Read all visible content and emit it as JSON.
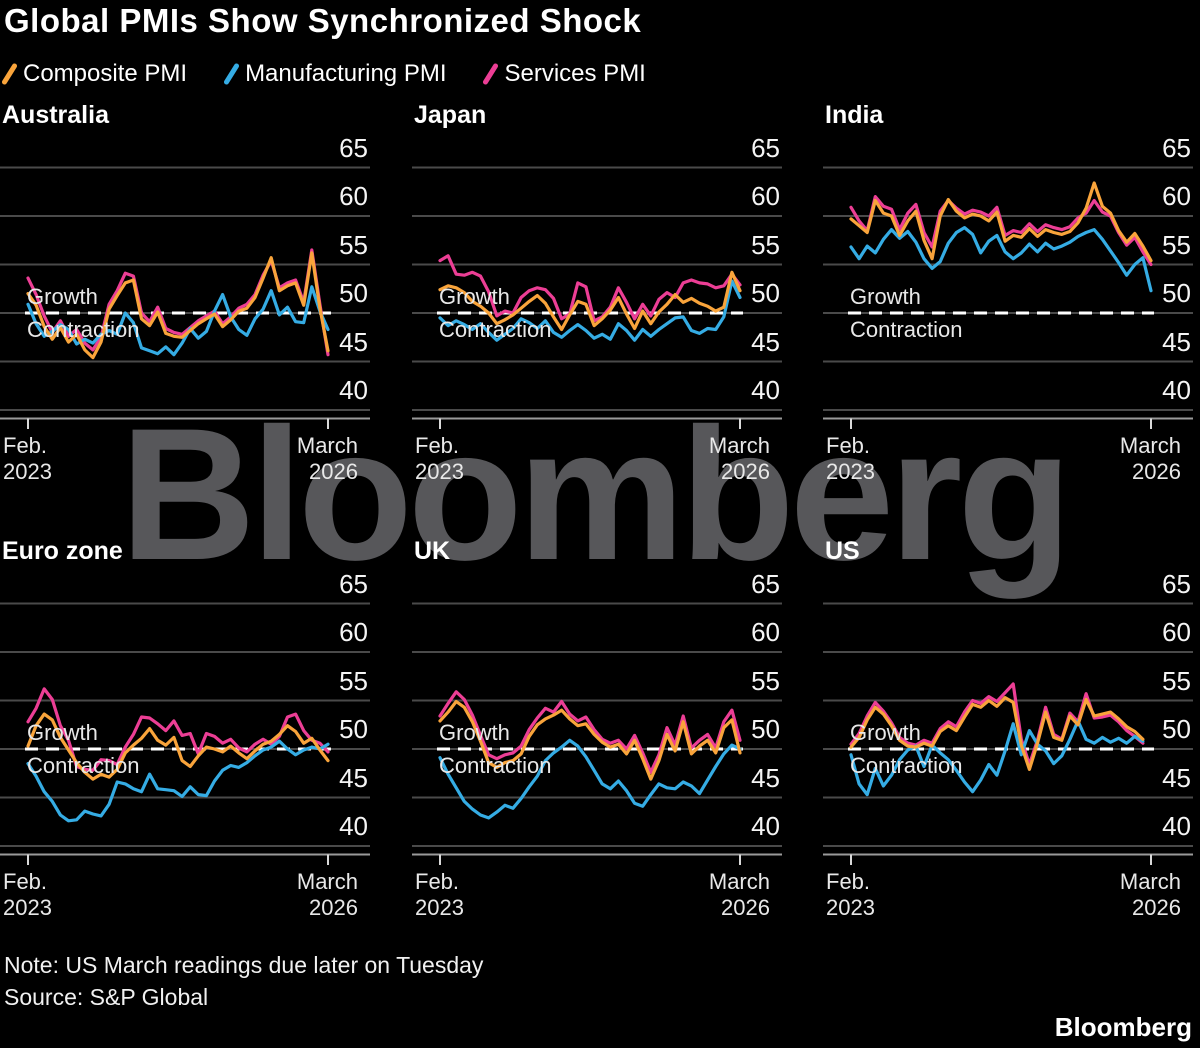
{
  "title": "Global PMIs Show Synchronized Shock",
  "legend": [
    {
      "label": "Composite PMI",
      "color": "#F9A43B"
    },
    {
      "label": "Manufacturing PMI",
      "color": "#35ACE4"
    },
    {
      "label": "Services PMI",
      "color": "#EC3E95"
    }
  ],
  "threshold_labels": {
    "growth": "Growth",
    "contraction": "Contraction"
  },
  "x_axis": {
    "start": [
      "Feb.",
      "2023"
    ],
    "end": [
      "March",
      "2026"
    ]
  },
  "axis": {
    "y_ticks": [
      65,
      60,
      55,
      50,
      45,
      40
    ]
  },
  "watermark": "Bloomberg",
  "note": "Note: US March readings due later on Tuesday",
  "source": "Source: S&P Global",
  "brand": "Bloomberg",
  "colors": {
    "background": "#000000",
    "gridline": "#4a4a4a",
    "axis_line": "#9a9a9a",
    "tick_mark": "#d9d9d9",
    "threshold_line": "#ffffff",
    "watermark": "#57575a",
    "composite": "#F9A43B",
    "manufacturing": "#35ACE4",
    "services": "#EC3E95"
  },
  "chart_data": [
    {
      "type": "line",
      "title": "Australia",
      "x_range": [
        "Feb. 2023",
        "March 2026"
      ],
      "ylim": [
        38,
        67
      ],
      "y_ticks": [
        65,
        60,
        55,
        50,
        45,
        40
      ],
      "threshold": 50,
      "grid": true,
      "series": [
        {
          "name": "Composite PMI",
          "color": "#F9A43B",
          "values": [
            52.0,
            50.8,
            48.6,
            47.3,
            48.5,
            47.0,
            47.8,
            46.2,
            45.4,
            47.0,
            50.4,
            51.8,
            53.1,
            53.4,
            49.4,
            48.7,
            50.1,
            47.9,
            47.6,
            47.5,
            48.2,
            48.9,
            49.4,
            49.9,
            48.6,
            49.3,
            50.2,
            50.5,
            51.6,
            53.6,
            55.7,
            52.3,
            52.8,
            53.1,
            50.8,
            56.2,
            50.5,
            46.1
          ]
        },
        {
          "name": "Manufacturing PMI",
          "color": "#35ACE4",
          "values": [
            50.9,
            48.9,
            47.6,
            48.1,
            48.8,
            48.3,
            46.8,
            47.3,
            46.9,
            47.8,
            48.2,
            47.8,
            50.0,
            49.0,
            46.4,
            46.1,
            45.8,
            46.5,
            45.7,
            46.9,
            48.4,
            47.4,
            48.1,
            50.2,
            51.9,
            49.6,
            48.3,
            47.7,
            49.4,
            50.4,
            52.3,
            49.8,
            50.6,
            49.1,
            49.0,
            52.7,
            50.2,
            48.3
          ]
        },
        {
          "name": "Services PMI",
          "color": "#EC3E95",
          "values": [
            53.6,
            51.9,
            49.7,
            48.0,
            49.2,
            47.6,
            48.3,
            46.9,
            46.2,
            47.5,
            50.9,
            52.3,
            54.1,
            53.8,
            50.0,
            49.1,
            50.6,
            48.4,
            48.0,
            47.8,
            48.5,
            49.2,
            49.7,
            50.2,
            48.9,
            49.6,
            50.5,
            50.9,
            51.9,
            53.9,
            55.4,
            52.6,
            53.1,
            53.4,
            51.1,
            56.5,
            50.9,
            45.7
          ]
        }
      ]
    },
    {
      "type": "line",
      "title": "Japan",
      "x_range": [
        "Feb. 2023",
        "March 2026"
      ],
      "ylim": [
        38,
        67
      ],
      "y_ticks": [
        65,
        60,
        55,
        50,
        45,
        40
      ],
      "threshold": 50,
      "grid": true,
      "series": [
        {
          "name": "Composite PMI",
          "color": "#F9A43B",
          "values": [
            52.4,
            52.8,
            52.6,
            52.1,
            51.2,
            50.7,
            50.0,
            48.9,
            49.3,
            49.8,
            50.5,
            51.2,
            51.8,
            51.0,
            49.6,
            48.3,
            49.8,
            51.2,
            50.9,
            48.7,
            49.4,
            50.3,
            51.6,
            49.9,
            48.4,
            50.2,
            48.9,
            50.1,
            50.9,
            51.9,
            51.1,
            51.5,
            51.0,
            50.7,
            50.2,
            50.6,
            54.2,
            52.3
          ]
        },
        {
          "name": "Manufacturing PMI",
          "color": "#35ACE4",
          "values": [
            49.5,
            48.7,
            49.2,
            48.8,
            48.3,
            48.9,
            48.0,
            47.2,
            47.8,
            48.4,
            49.4,
            49.0,
            48.4,
            49.2,
            48.0,
            47.5,
            48.2,
            48.8,
            48.2,
            47.4,
            47.8,
            47.3,
            48.9,
            48.2,
            47.2,
            48.3,
            47.6,
            48.3,
            48.9,
            49.5,
            49.6,
            48.2,
            47.9,
            48.4,
            48.3,
            49.6,
            53.3,
            51.6
          ]
        },
        {
          "name": "Services PMI",
          "color": "#EC3E95",
          "values": [
            55.4,
            55.9,
            54.0,
            53.9,
            54.2,
            53.8,
            52.2,
            49.7,
            50.2,
            50.0,
            51.6,
            52.3,
            52.6,
            52.4,
            51.5,
            49.4,
            49.9,
            53.1,
            52.7,
            49.2,
            49.6,
            50.6,
            52.6,
            51.1,
            49.4,
            50.9,
            49.7,
            51.4,
            52.1,
            51.6,
            53.1,
            53.4,
            53.1,
            53.0,
            52.6,
            52.8,
            54.0,
            52.9
          ]
        }
      ]
    },
    {
      "type": "line",
      "title": "India",
      "x_range": [
        "Feb. 2023",
        "March 2026"
      ],
      "ylim": [
        38,
        67
      ],
      "y_ticks": [
        65,
        60,
        55,
        50,
        45,
        40
      ],
      "threshold": 50,
      "grid": true,
      "series": [
        {
          "name": "Composite PMI",
          "color": "#F9A43B",
          "values": [
            59.7,
            59.0,
            58.3,
            61.6,
            60.3,
            60.0,
            58.0,
            59.5,
            60.5,
            57.5,
            55.6,
            60.0,
            61.7,
            60.5,
            59.8,
            60.2,
            60.0,
            59.5,
            60.4,
            57.4,
            58.0,
            57.8,
            58.7,
            57.9,
            58.6,
            58.3,
            58.1,
            58.4,
            59.3,
            60.8,
            63.4,
            61.0,
            60.3,
            58.5,
            57.3,
            58.2,
            56.9,
            55.4
          ]
        },
        {
          "name": "Manufacturing PMI",
          "color": "#35ACE4",
          "values": [
            56.8,
            55.6,
            56.9,
            56.2,
            57.6,
            58.6,
            57.7,
            58.4,
            57.3,
            55.6,
            54.6,
            55.3,
            57.2,
            58.3,
            58.8,
            58.1,
            56.2,
            57.4,
            58.0,
            56.3,
            55.6,
            56.2,
            57.1,
            56.3,
            57.2,
            56.6,
            56.9,
            57.3,
            57.9,
            58.3,
            58.6,
            57.6,
            56.4,
            55.2,
            53.9,
            55.0,
            55.7,
            52.3
          ]
        },
        {
          "name": "Services PMI",
          "color": "#EC3E95",
          "values": [
            60.9,
            59.5,
            58.5,
            62.0,
            61.0,
            60.7,
            58.6,
            60.3,
            61.2,
            58.3,
            56.8,
            60.5,
            61.6,
            60.8,
            60.2,
            60.6,
            60.4,
            60.0,
            60.9,
            58.0,
            58.5,
            58.3,
            59.2,
            58.4,
            59.1,
            58.8,
            58.6,
            58.9,
            59.8,
            60.3,
            61.6,
            60.4,
            60.0,
            58.3,
            57.0,
            57.8,
            56.3,
            55.0
          ]
        }
      ]
    },
    {
      "type": "line",
      "title": "Euro zone",
      "x_range": [
        "Feb. 2023",
        "March 2026"
      ],
      "ylim": [
        38,
        67
      ],
      "y_ticks": [
        65,
        60,
        55,
        50,
        45,
        40
      ],
      "threshold": 50,
      "grid": true,
      "series": [
        {
          "name": "Composite PMI",
          "color": "#F9A43B",
          "values": [
            50.3,
            52.4,
            53.6,
            53.0,
            51.2,
            49.9,
            48.6,
            47.6,
            46.9,
            47.4,
            47.1,
            47.9,
            49.6,
            50.4,
            51.1,
            52.1,
            50.9,
            50.4,
            51.2,
            48.8,
            48.2,
            49.3,
            50.2,
            50.0,
            49.7,
            50.3,
            49.6,
            49.0,
            49.8,
            50.5,
            50.8,
            51.5,
            52.4,
            51.8,
            50.6,
            51.1,
            49.9,
            48.8
          ]
        },
        {
          "name": "Manufacturing PMI",
          "color": "#35ACE4",
          "values": [
            48.5,
            47.2,
            45.6,
            44.6,
            43.2,
            42.6,
            42.7,
            43.6,
            43.3,
            43.1,
            44.3,
            46.6,
            46.4,
            45.9,
            45.6,
            47.4,
            45.9,
            45.8,
            45.7,
            45.1,
            46.1,
            45.3,
            45.2,
            46.7,
            47.8,
            48.3,
            48.1,
            48.6,
            49.3,
            49.9,
            50.2,
            50.8,
            50.0,
            49.4,
            49.9,
            50.2,
            50.0,
            50.5
          ]
        },
        {
          "name": "Services PMI",
          "color": "#EC3E95",
          "values": [
            52.8,
            54.2,
            56.2,
            55.1,
            52.4,
            50.9,
            48.2,
            47.9,
            47.8,
            48.9,
            48.8,
            48.4,
            50.2,
            51.5,
            53.3,
            53.2,
            52.6,
            51.9,
            52.9,
            51.4,
            51.6,
            49.5,
            51.6,
            51.3,
            50.6,
            51.0,
            50.1,
            49.7,
            50.5,
            51.0,
            50.5,
            51.3,
            53.3,
            53.6,
            51.9,
            50.9,
            50.6,
            49.7
          ]
        }
      ]
    },
    {
      "type": "line",
      "title": "UK",
      "x_range": [
        "Feb. 2023",
        "March 2026"
      ],
      "ylim": [
        38,
        67
      ],
      "y_ticks": [
        65,
        60,
        55,
        50,
        45,
        40
      ],
      "threshold": 50,
      "grid": true,
      "series": [
        {
          "name": "Composite PMI",
          "color": "#F9A43B",
          "values": [
            52.9,
            53.8,
            54.9,
            54.3,
            52.8,
            50.8,
            48.6,
            48.1,
            48.6,
            48.8,
            49.5,
            51.3,
            52.5,
            53.1,
            53.5,
            54.0,
            53.1,
            52.4,
            52.6,
            51.5,
            50.7,
            50.2,
            50.5,
            49.5,
            50.9,
            49.0,
            46.9,
            48.8,
            51.5,
            49.8,
            52.8,
            49.5,
            50.3,
            50.9,
            49.6,
            52.2,
            53.0,
            49.6
          ]
        },
        {
          "name": "Manufacturing PMI",
          "color": "#35ACE4",
          "values": [
            49.1,
            47.4,
            46.0,
            44.6,
            43.8,
            43.2,
            42.9,
            43.5,
            44.2,
            43.9,
            44.9,
            46.1,
            47.2,
            48.8,
            49.6,
            50.2,
            50.9,
            50.3,
            49.2,
            47.8,
            46.4,
            45.9,
            46.7,
            45.7,
            44.4,
            44.1,
            45.3,
            46.4,
            46.0,
            45.9,
            46.6,
            46.2,
            45.4,
            46.8,
            48.2,
            49.5,
            50.4,
            50.0
          ]
        },
        {
          "name": "Services PMI",
          "color": "#EC3E95",
          "values": [
            53.4,
            54.7,
            55.9,
            55.1,
            53.5,
            51.4,
            49.4,
            49.0,
            49.4,
            49.6,
            50.3,
            52.0,
            53.2,
            54.2,
            53.8,
            54.9,
            53.6,
            52.9,
            53.3,
            52.0,
            51.0,
            50.6,
            50.9,
            50.0,
            51.4,
            49.6,
            47.6,
            49.4,
            52.2,
            50.4,
            53.4,
            50.1,
            50.9,
            51.5,
            50.1,
            52.8,
            54.0,
            50.9
          ]
        }
      ]
    },
    {
      "type": "line",
      "title": "US",
      "x_range": [
        "Feb. 2023",
        "March 2026"
      ],
      "ylim": [
        38,
        67
      ],
      "y_ticks": [
        65,
        60,
        55,
        50,
        45,
        40
      ],
      "threshold": 50,
      "grid": true,
      "series": [
        {
          "name": "Composite PMI",
          "color": "#F9A43B",
          "values": [
            50.2,
            51.2,
            53.0,
            54.3,
            53.6,
            52.4,
            50.9,
            50.3,
            50.2,
            50.6,
            50.3,
            51.8,
            52.4,
            51.9,
            53.3,
            54.6,
            54.3,
            55.0,
            54.4,
            55.3,
            54.8,
            50.4,
            47.9,
            50.6,
            53.8,
            51.2,
            50.9,
            53.4,
            52.5,
            55.1,
            53.4,
            53.6,
            53.8,
            53.1,
            52.3,
            51.8,
            51.0
          ]
        },
        {
          "name": "Manufacturing PMI",
          "color": "#35ACE4",
          "values": [
            49.4,
            46.4,
            45.3,
            48.0,
            46.2,
            47.3,
            48.9,
            49.9,
            50.3,
            48.2,
            50.4,
            49.6,
            48.9,
            47.8,
            46.6,
            45.6,
            46.8,
            48.4,
            47.3,
            49.8,
            52.6,
            49.4,
            51.9,
            50.5,
            49.8,
            48.5,
            49.3,
            51.0,
            52.9,
            51.0,
            50.6,
            51.2,
            50.7,
            51.1,
            50.6,
            51.3,
            50.8
          ]
        },
        {
          "name": "Services PMI",
          "color": "#EC3E95",
          "values": [
            50.5,
            51.6,
            53.4,
            54.8,
            53.9,
            52.7,
            51.2,
            50.6,
            50.4,
            50.9,
            50.6,
            52.1,
            52.8,
            52.3,
            53.8,
            55.0,
            54.7,
            55.4,
            54.9,
            55.8,
            56.7,
            51.0,
            48.4,
            50.9,
            54.3,
            51.5,
            51.0,
            53.7,
            52.8,
            55.7,
            53.2,
            53.3,
            53.5,
            52.8,
            51.9,
            51.3,
            50.6
          ]
        }
      ]
    }
  ]
}
